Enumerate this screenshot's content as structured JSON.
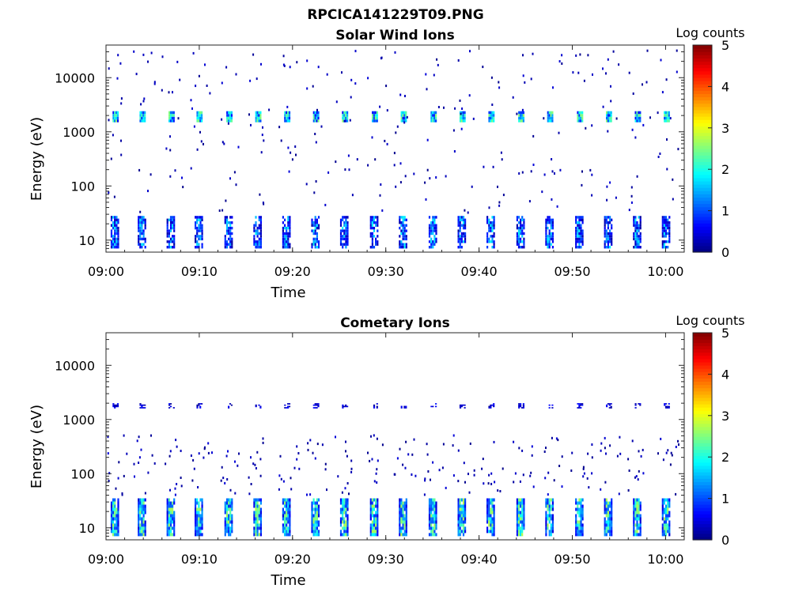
{
  "figure": {
    "title": "RPCICA141229T09.PNG"
  },
  "chart_data": [
    {
      "type": "heatmap",
      "title": "Solar Wind Ions",
      "xlabel": "Time",
      "ylabel": "Energy (eV)",
      "yscale": "log",
      "ylim": [
        6,
        40000
      ],
      "xlim": [
        "09:00",
        "10:02"
      ],
      "x_ticks": [
        "09:00",
        "09:10",
        "09:20",
        "09:30",
        "09:40",
        "09:50",
        "10:00"
      ],
      "y_ticks": [
        "10",
        "100",
        "1000",
        "10000"
      ],
      "colorbar": {
        "label": "Log counts",
        "range": [
          0,
          5
        ],
        "ticks": [
          "0",
          "1",
          "2",
          "3",
          "4",
          "5"
        ]
      },
      "sweep_minutes": [
        0.5,
        3.4,
        6.5,
        9.5,
        12.7,
        15.8,
        18.9,
        22.0,
        25.1,
        28.3,
        31.4,
        34.6,
        37.7,
        40.8,
        44.0,
        47.1,
        50.3,
        53.4,
        56.5,
        59.6
      ],
      "bands": [
        {
          "energy_range_eV": [
            1500,
            2400
          ],
          "log_counts_peak": 2.3,
          "description": "solar wind proton peak near 2 keV"
        },
        {
          "energy_range_eV": [
            3000,
            5000
          ],
          "log_counts_peak": 1.3
        },
        {
          "energy_range_eV": [
            7,
            28
          ],
          "log_counts_peak": 1.8
        }
      ],
      "grid": false
    },
    {
      "type": "heatmap",
      "title": "Cometary Ions",
      "xlabel": "Time",
      "ylabel": "Energy (eV)",
      "yscale": "log",
      "ylim": [
        6,
        40000
      ],
      "xlim": [
        "09:00",
        "10:02"
      ],
      "x_ticks": [
        "09:00",
        "09:10",
        "09:20",
        "09:30",
        "09:40",
        "09:50",
        "10:00"
      ],
      "y_ticks": [
        "10",
        "100",
        "1000",
        "10000"
      ],
      "colorbar": {
        "label": "Log counts",
        "range": [
          0,
          5
        ],
        "ticks": [
          "0",
          "1",
          "2",
          "3",
          "4",
          "5"
        ]
      },
      "sweep_minutes": [
        0.5,
        3.4,
        6.5,
        9.5,
        12.7,
        15.8,
        18.9,
        22.0,
        25.1,
        28.3,
        31.4,
        34.6,
        37.7,
        40.8,
        44.0,
        47.1,
        50.3,
        53.4,
        56.5,
        59.6
      ],
      "bands": [
        {
          "energy_range_eV": [
            7,
            35
          ],
          "log_counts_peak": 2.6,
          "description": "low-energy cometary ions"
        },
        {
          "energy_range_eV": [
            1600,
            2000
          ],
          "log_counts_peak": 0.6
        },
        {
          "energy_range_eV": [
            50,
            400
          ],
          "log_counts_peak": 0.5
        }
      ],
      "grid": false
    }
  ]
}
